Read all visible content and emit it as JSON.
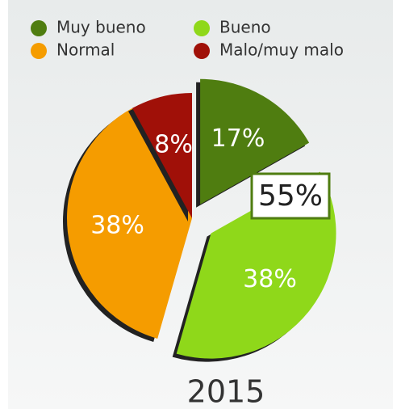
{
  "chart_data": {
    "type": "pie",
    "title": "2015",
    "categories": [
      "Muy bueno",
      "Bueno",
      "Normal",
      "Malo/muy malo"
    ],
    "values": [
      17,
      38,
      38,
      8
    ],
    "value_labels": [
      "17%",
      "38%",
      "38%",
      "8%"
    ],
    "colors": [
      "#4f7d10",
      "#8fd81a",
      "#f59c00",
      "#a01008"
    ],
    "annotation": "55%",
    "legend": "top"
  }
}
